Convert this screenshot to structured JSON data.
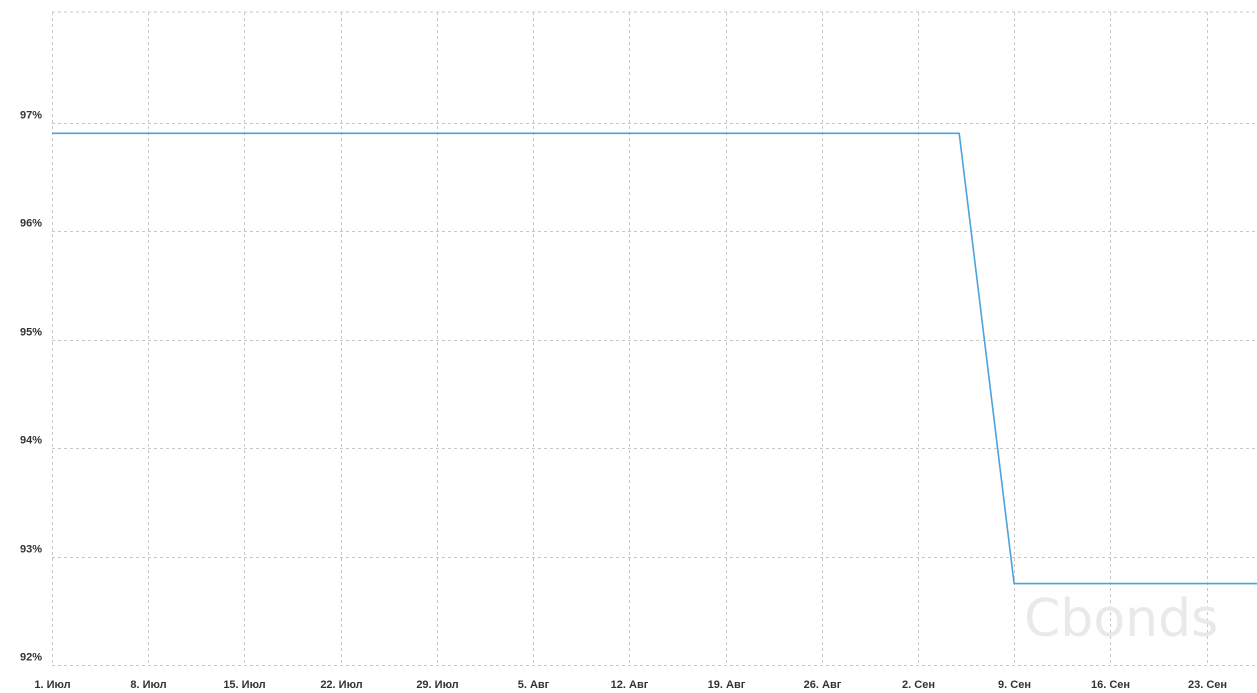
{
  "chart_data": {
    "type": "line",
    "title": "",
    "xlabel": "",
    "ylabel": "",
    "x_start_date": "2024-07-01",
    "x_ticks": [
      {
        "label": "1. Июл",
        "date": "2024-07-01"
      },
      {
        "label": "8. Июл",
        "date": "2024-07-08"
      },
      {
        "label": "15. Июл",
        "date": "2024-07-15"
      },
      {
        "label": "22. Июл",
        "date": "2024-07-22"
      },
      {
        "label": "29. Июл",
        "date": "2024-07-29"
      },
      {
        "label": "5. Авг",
        "date": "2024-08-05"
      },
      {
        "label": "12. Авг",
        "date": "2024-08-12"
      },
      {
        "label": "19. Авг",
        "date": "2024-08-19"
      },
      {
        "label": "26. Авг",
        "date": "2024-08-26"
      },
      {
        "label": "2. Сен",
        "date": "2024-09-02"
      },
      {
        "label": "9. Сен",
        "date": "2024-09-09"
      },
      {
        "label": "16. Сен",
        "date": "2024-09-16"
      },
      {
        "label": "23. Сен",
        "date": "2024-09-23"
      }
    ],
    "y_ticks": [
      {
        "label": "92%",
        "value": 92
      },
      {
        "label": "93%",
        "value": 93
      },
      {
        "label": "94%",
        "value": 94
      },
      {
        "label": "95%",
        "value": 95
      },
      {
        "label": "96%",
        "value": 96
      },
      {
        "label": "97%",
        "value": 97
      }
    ],
    "ylim": [
      92,
      98
    ],
    "grid": true,
    "series": [
      {
        "color": "#4aa3df",
        "points": [
          {
            "x": "2024-07-01",
            "y": 96.9
          },
          {
            "x": "2024-09-05",
            "y": 96.9
          },
          {
            "x": "2024-09-09",
            "y": 92.75
          },
          {
            "x": "2024-09-29",
            "y": 92.75
          }
        ]
      }
    ]
  },
  "watermark": "Cbonds"
}
